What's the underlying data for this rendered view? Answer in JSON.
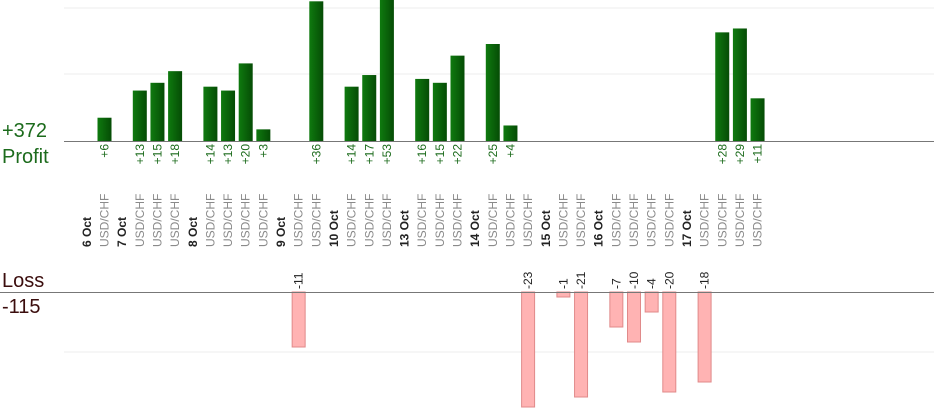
{
  "summary": {
    "profit_total": "+372",
    "profit_label": "Profit",
    "loss_label": "Loss",
    "loss_total": "-115"
  },
  "colors": {
    "profit_bar": "#0b6a0b",
    "profit_text": "#1c6b1c",
    "loss_bar": "#ffb3b3",
    "loss_bar_stroke": "#e08a8a",
    "loss_text": "#3b0d0d",
    "pair_text": "#8a8a8a",
    "grid": "#ececec",
    "axis": "#777777"
  },
  "chart_data": {
    "type": "bar",
    "series": [
      {
        "values": [
          6,
          13,
          15,
          18,
          14,
          13,
          20,
          3,
          36,
          14,
          17,
          53,
          16,
          15,
          22,
          25,
          4,
          28,
          29,
          11
        ]
      },
      {
        "values": [
          -11,
          -23,
          -1,
          -21,
          -7,
          -10,
          -4,
          -20,
          -18
        ]
      }
    ],
    "groups": [
      {
        "date": "6 Oct",
        "trades": [
          {
            "pair": "USD/CHF",
            "value": 6,
            "label": "+6"
          }
        ]
      },
      {
        "date": "7 Oct",
        "trades": [
          {
            "pair": "USD/CHF",
            "value": 13,
            "label": "+13"
          },
          {
            "pair": "USD/CHF",
            "value": 15,
            "label": "+15"
          },
          {
            "pair": "USD/CHF",
            "value": 18,
            "label": "+18"
          }
        ]
      },
      {
        "date": "8 Oct",
        "trades": [
          {
            "pair": "USD/CHF",
            "value": 14,
            "label": "+14"
          },
          {
            "pair": "USD/CHF",
            "value": 13,
            "label": "+13"
          },
          {
            "pair": "USD/CHF",
            "value": 20,
            "label": "+20"
          },
          {
            "pair": "USD/CHF",
            "value": 3,
            "label": "+3"
          }
        ]
      },
      {
        "date": "9 Oct",
        "trades": [
          {
            "pair": "USD/CHF",
            "value": -11,
            "label": "-11"
          },
          {
            "pair": "USD/CHF",
            "value": 36,
            "label": "+36"
          }
        ]
      },
      {
        "date": "10 Oct",
        "trades": [
          {
            "pair": "USD/CHF",
            "value": 14,
            "label": "+14"
          },
          {
            "pair": "USD/CHF",
            "value": 17,
            "label": "+17"
          },
          {
            "pair": "USD/CHF",
            "value": 53,
            "label": "+53"
          }
        ]
      },
      {
        "date": "13 Oct",
        "trades": [
          {
            "pair": "USD/CHF",
            "value": 16,
            "label": "+16"
          },
          {
            "pair": "USD/CHF",
            "value": 15,
            "label": "+15"
          },
          {
            "pair": "USD/CHF",
            "value": 22,
            "label": "+22"
          }
        ]
      },
      {
        "date": "14 Oct",
        "trades": [
          {
            "pair": "USD/CHF",
            "value": 25,
            "label": "+25"
          },
          {
            "pair": "USD/CHF",
            "value": 4,
            "label": "+4"
          },
          {
            "pair": "USD/CHF",
            "value": -23,
            "label": "-23"
          }
        ]
      },
      {
        "date": "15 Oct",
        "trades": [
          {
            "pair": "USD/CHF",
            "value": -1,
            "label": "-1"
          },
          {
            "pair": "USD/CHF",
            "value": -21,
            "label": "-21"
          }
        ]
      },
      {
        "date": "16 Oct",
        "trades": [
          {
            "pair": "USD/CHF",
            "value": -7,
            "label": "-7"
          },
          {
            "pair": "USD/CHF",
            "value": -10,
            "label": "-10"
          },
          {
            "pair": "USD/CHF",
            "value": -4,
            "label": "-4"
          },
          {
            "pair": "USD/CHF",
            "value": -20,
            "label": "-20"
          }
        ]
      },
      {
        "date": "17 Oct",
        "trades": [
          {
            "pair": "USD/CHF",
            "value": -18,
            "label": "-18"
          },
          {
            "pair": "USD/CHF",
            "value": 28,
            "label": "+28"
          },
          {
            "pair": "USD/CHF",
            "value": 29,
            "label": "+29"
          },
          {
            "pair": "USD/CHF",
            "value": 11,
            "label": "+11"
          }
        ]
      }
    ],
    "grid": true
  }
}
